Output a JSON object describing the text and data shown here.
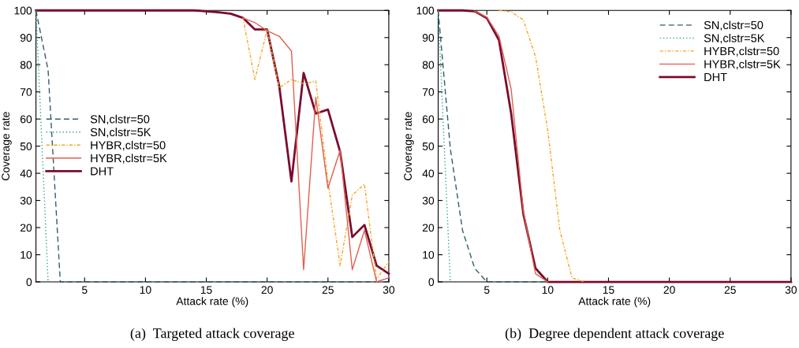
{
  "chart_data": [
    {
      "type": "line",
      "xlabel": "Attack rate (%)",
      "ylabel": "Coverage rate",
      "annotations": [
        "(a)  Targeted attack coverage"
      ],
      "x": [
        1,
        2,
        3,
        4,
        5,
        6,
        7,
        8,
        9,
        10,
        11,
        12,
        13,
        14,
        15,
        16,
        17,
        18,
        19,
        20,
        21,
        22,
        23,
        24,
        25,
        26,
        27,
        28,
        29,
        30
      ],
      "xlim": [
        1,
        30
      ],
      "xticks": [
        5,
        10,
        15,
        20,
        25,
        30
      ],
      "ylim": [
        0,
        100
      ],
      "yticks": [
        0,
        10,
        20,
        30,
        40,
        50,
        60,
        70,
        80,
        90,
        100
      ],
      "grid": false,
      "legend": "left",
      "marker": "none",
      "series": [
        {
          "name": "SN,clstr=50",
          "color": "#2f5f6a",
          "line_style": "dashed",
          "values": [
            100,
            78,
            0,
            0,
            0,
            0,
            0,
            0,
            0,
            0,
            0,
            0,
            0,
            0,
            0,
            0,
            0,
            0,
            0,
            0,
            0,
            0,
            0,
            0,
            0,
            0,
            0,
            0,
            0,
            0
          ]
        },
        {
          "name": "SN,clstr=5K",
          "color": "#2aa88a",
          "line_style": "dotted",
          "values": [
            100,
            0,
            null,
            null,
            null,
            null,
            null,
            null,
            null,
            null,
            null,
            null,
            null,
            null,
            null,
            null,
            null,
            null,
            null,
            null,
            null,
            null,
            null,
            null,
            null,
            null,
            null,
            null,
            null,
            null
          ]
        },
        {
          "name": "HYBR,clstr=50",
          "color": "#f5a623",
          "line_style": "dashdot",
          "values": [
            null,
            null,
            null,
            null,
            null,
            null,
            null,
            null,
            null,
            null,
            null,
            null,
            null,
            null,
            null,
            null,
            null,
            97.5,
            74.5,
            93,
            71.5,
            74.5,
            73,
            74,
            37,
            6,
            32,
            36,
            1,
            7.5
          ]
        },
        {
          "name": "HYBR,clstr=5K",
          "color": "#e0604f",
          "line_style": "solid",
          "values": [
            null,
            null,
            null,
            null,
            null,
            null,
            null,
            null,
            null,
            null,
            null,
            null,
            null,
            null,
            null,
            null,
            null,
            97.3,
            95.5,
            92.5,
            90.5,
            85,
            4.5,
            68,
            34.5,
            48.5,
            4.5,
            19,
            0,
            1.5
          ]
        },
        {
          "name": "DHT",
          "color": "#7a0c2e",
          "line_style": "solid",
          "values": [
            100,
            100,
            100,
            100,
            100,
            100,
            100,
            100,
            100,
            100,
            100,
            100,
            100,
            100,
            99.7,
            99.3,
            98.8,
            97.3,
            93,
            93,
            72,
            37,
            77,
            62,
            63.5,
            48,
            16.5,
            21,
            6,
            3
          ]
        }
      ]
    },
    {
      "type": "line",
      "xlabel": "Attack rate (%)",
      "ylabel": "Coverage rate",
      "annotations": [
        "(b)  Degree dependent attack coverage"
      ],
      "x": [
        1,
        2,
        3,
        4,
        5,
        6,
        7,
        8,
        9,
        10,
        11,
        12,
        13,
        14,
        15,
        16,
        17,
        18,
        19,
        20,
        21,
        22,
        23,
        24,
        25,
        26,
        27,
        28,
        29,
        30
      ],
      "xlim": [
        1,
        30
      ],
      "xticks": [
        5,
        10,
        15,
        20,
        25,
        30
      ],
      "ylim": [
        0,
        100
      ],
      "yticks": [
        0,
        10,
        20,
        30,
        40,
        50,
        60,
        70,
        80,
        90,
        100
      ],
      "grid": false,
      "legend": "top right",
      "marker": "none",
      "series": [
        {
          "name": "SN,clstr=50",
          "color": "#2f5f6a",
          "line_style": "dashed",
          "values": [
            100,
            49,
            19,
            5,
            0,
            0,
            0,
            0,
            0,
            0,
            null,
            null,
            null,
            null,
            null,
            null,
            null,
            null,
            null,
            null,
            null,
            null,
            null,
            null,
            null,
            null,
            null,
            null,
            null,
            null
          ]
        },
        {
          "name": "SN,clstr=5K",
          "color": "#2aa88a",
          "line_style": "dotted",
          "values": [
            100,
            0,
            null,
            null,
            null,
            null,
            null,
            null,
            null,
            null,
            null,
            null,
            null,
            null,
            null,
            null,
            null,
            null,
            null,
            null,
            null,
            null,
            null,
            null,
            null,
            null,
            null,
            null,
            null,
            null
          ]
        },
        {
          "name": "HYBR,clstr=50",
          "color": "#f5a623",
          "line_style": "dashdot",
          "values": [
            null,
            null,
            null,
            null,
            null,
            100,
            99.5,
            96.5,
            83,
            56,
            19,
            1.5,
            0,
            null,
            null,
            null,
            null,
            null,
            null,
            null,
            null,
            null,
            null,
            null,
            null,
            null,
            null,
            null,
            null,
            null
          ]
        },
        {
          "name": "HYBR,clstr=5K",
          "color": "#e0604f",
          "line_style": "solid",
          "values": [
            null,
            null,
            null,
            99.7,
            97.5,
            90.5,
            71,
            26,
            3,
            0,
            null,
            null,
            null,
            null,
            null,
            null,
            null,
            null,
            null,
            null,
            null,
            null,
            null,
            null,
            null,
            null,
            null,
            null,
            null,
            null
          ]
        },
        {
          "name": "DHT",
          "color": "#7a0c2e",
          "line_style": "solid",
          "values": [
            100,
            100,
            100,
            99.7,
            97.2,
            89,
            62,
            25,
            5,
            0,
            0,
            0,
            0,
            0,
            0,
            0,
            0,
            0,
            0,
            0,
            0,
            0,
            0,
            0,
            0,
            0,
            0,
            0,
            0,
            0
          ]
        }
      ]
    }
  ]
}
